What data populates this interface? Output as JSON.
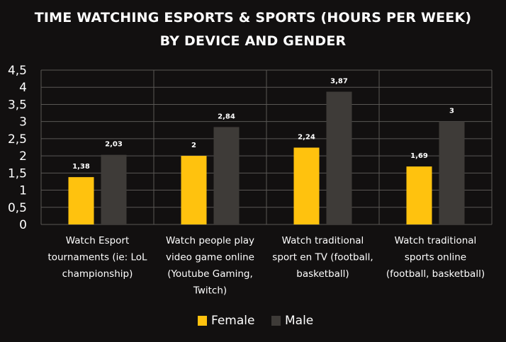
{
  "chart_data": {
    "type": "bar",
    "title_lines": [
      "TIME WATCHING ESPORTS & SPORTS (HOURS PER WEEK)",
      "BY DEVICE AND GENDER"
    ],
    "categories": [
      [
        "Watch Esport",
        "tournaments (ie: LoL",
        "championship)"
      ],
      [
        "Watch people play",
        "video game online",
        "(Youtube Gaming,",
        "Twitch)"
      ],
      [
        "Watch traditional",
        "sport en TV (football,",
        "basketball)"
      ],
      [
        "Watch traditional",
        "sports online",
        "(football, basketball)"
      ]
    ],
    "series": [
      {
        "name": "Female",
        "values": [
          1.38,
          2,
          2.24,
          1.69
        ],
        "labels": [
          "1,38",
          "2",
          "2,24",
          "1,69"
        ],
        "color": "#FFC20E"
      },
      {
        "name": "Male",
        "values": [
          2.03,
          2.84,
          3.87,
          3
        ],
        "labels": [
          "2,03",
          "2,84",
          "3,87",
          "3"
        ],
        "color": "#3E3B38"
      }
    ],
    "ylim": [
      0,
      4.5
    ],
    "yticks": [
      "0",
      "0,5",
      "1",
      "1,5",
      "2",
      "2,5",
      "3",
      "3,5",
      "4",
      "4,5"
    ],
    "grid": true,
    "legend_position": "bottom",
    "background": "#121010",
    "gridline_color": "#5a5755"
  }
}
